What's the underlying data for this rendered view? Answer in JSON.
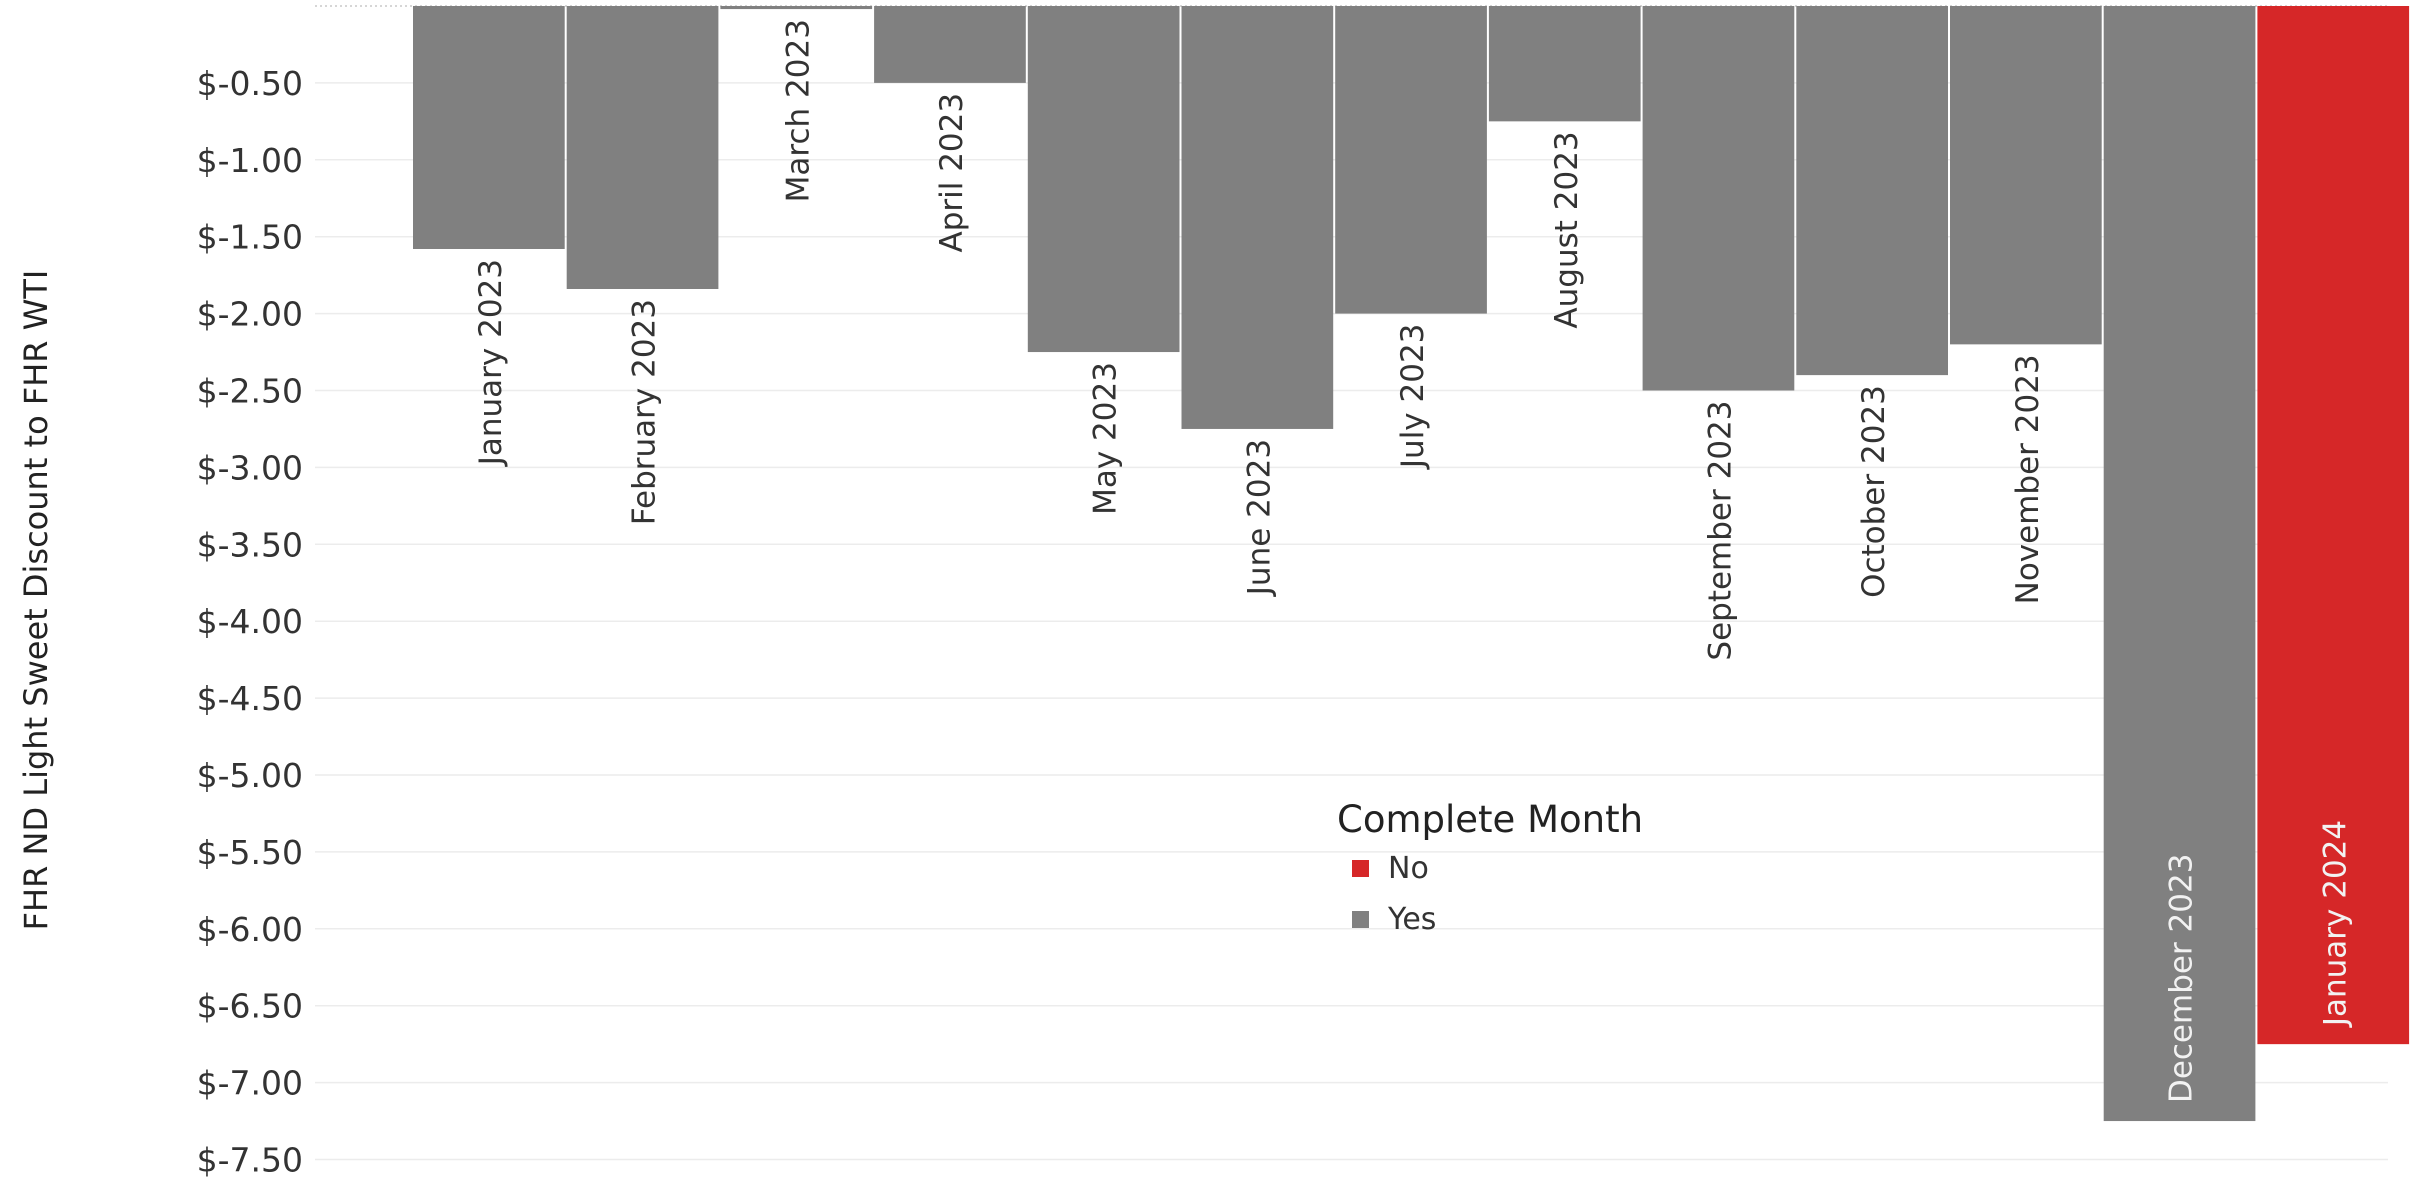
{
  "chart_data": {
    "type": "bar",
    "ylabel": "FHR ND Light Sweet Discount to FHR WTI",
    "ylim": [
      -7.75,
      0
    ],
    "yticks": [
      -0.5,
      -1.0,
      -1.5,
      -2.0,
      -2.5,
      -3.0,
      -3.5,
      -4.0,
      -4.5,
      -5.0,
      -5.5,
      -6.0,
      -6.5,
      -7.0,
      -7.5
    ],
    "ytick_labels": [
      "$-0.50",
      "$-1.00",
      "$-1.50",
      "$-2.00",
      "$-2.50",
      "$-3.00",
      "$-3.50",
      "$-4.00",
      "$-4.50",
      "$-5.00",
      "$-5.50",
      "$-6.00",
      "$-6.50",
      "$-7.00",
      "$-7.50"
    ],
    "grid": true,
    "categories": [
      "January 2023",
      "February 2023",
      "March 2023",
      "April 2023",
      "May 2023",
      "June 2023",
      "July 2023",
      "August 2023",
      "September 2023",
      "October 2023",
      "November 2023",
      "December 2023",
      "January 2024"
    ],
    "values": [
      -1.58,
      -1.84,
      -0.02,
      -0.5,
      -2.25,
      -2.75,
      -2.0,
      -0.75,
      -2.5,
      -2.4,
      -2.2,
      -7.25,
      -6.75
    ],
    "complete_month": [
      "Yes",
      "Yes",
      "Yes",
      "Yes",
      "Yes",
      "Yes",
      "Yes",
      "Yes",
      "Yes",
      "Yes",
      "Yes",
      "Yes",
      "No"
    ],
    "legend": {
      "title": "Complete Month",
      "placement": "center",
      "items": [
        {
          "label": "No",
          "color": "#d62728"
        },
        {
          "label": "Yes",
          "color": "#808080"
        }
      ]
    },
    "colors": {
      "Yes": "#808080",
      "No": "#d62728"
    }
  }
}
